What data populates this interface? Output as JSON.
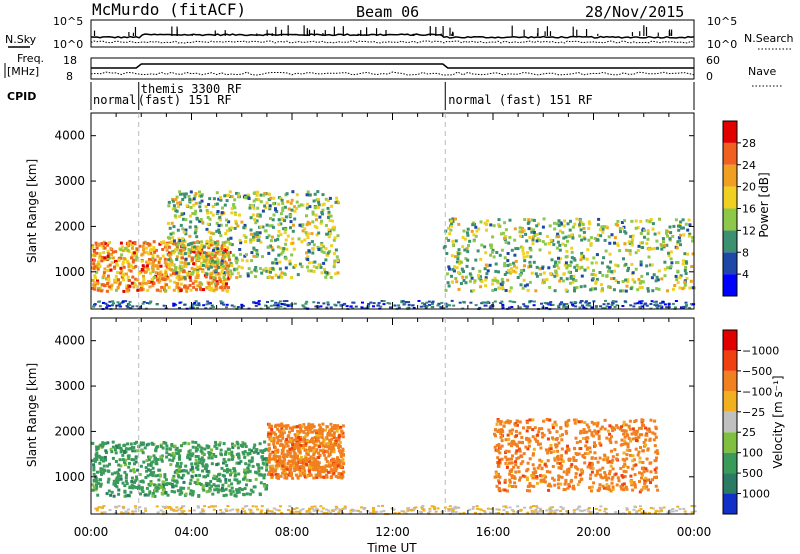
{
  "header": {
    "station": "McMurdo (fitACF)",
    "beam": "Beam 06",
    "date": "28/Nov/2015"
  },
  "top_panels": {
    "sky_label": "N.Sky",
    "search_label": "N.Search",
    "sky_ticks": [
      "10^5",
      "10^0"
    ],
    "search_ticks": [
      "10^5",
      "10^0"
    ],
    "freq_label_1": "Freq.",
    "freq_label_2": "[MHz]",
    "freq_ticks": [
      "18",
      "8"
    ],
    "nave_label": "Nave",
    "nave_ticks": [
      "60",
      "0"
    ],
    "cpid_label": "CPID",
    "cpid_segments": [
      {
        "label": "normal",
        "start_hour": 0.0
      },
      {
        "label": "themis 3300 RF",
        "start_hour": 1.9
      },
      {
        "label": "(fast) 151 RF",
        "start_hour": 1.9
      },
      {
        "label": "normal (fast) 151 RF",
        "start_hour": 14.1
      }
    ]
  },
  "chart_data": [
    {
      "type": "heatmap",
      "name": "power",
      "ylabel": "Slant Range [km]",
      "ylim": [
        180,
        4500
      ],
      "yticks": [
        1000,
        2000,
        3000,
        4000
      ],
      "xlim": [
        0,
        24
      ],
      "colorbar": {
        "label": "Power [dB]",
        "tick_labels": [
          "4",
          "8",
          "12",
          "16",
          "20",
          "24",
          "28"
        ],
        "colors": [
          "#0000ff",
          "#1e48a8",
          "#3a9070",
          "#8cc84a",
          "#f0d020",
          "#f0a020",
          "#f06020",
          "#e00000"
        ]
      },
      "features": [
        {
          "start_hour": 0.0,
          "end_hour": 5.5,
          "range_km": [
            600,
            1700
          ],
          "level_db": 22
        },
        {
          "start_hour": 3.0,
          "end_hour": 9.8,
          "range_km": [
            900,
            2800
          ],
          "level_db": 14
        },
        {
          "start_hour": 14.0,
          "end_hour": 24.0,
          "range_km": [
            600,
            2200
          ],
          "level_db": 14
        }
      ]
    },
    {
      "type": "heatmap",
      "name": "velocity",
      "xlabel": "Time UT",
      "ylabel": "Slant Range [km]",
      "ylim": [
        180,
        4500
      ],
      "yticks": [
        1000,
        2000,
        3000,
        4000
      ],
      "xlim": [
        0,
        24
      ],
      "xtick_labels": [
        "00:00",
        "04:00",
        "08:00",
        "12:00",
        "16:00",
        "20:00",
        "00:00"
      ],
      "colorbar": {
        "label": "Velocity [m s⁻¹]",
        "tick_labels": [
          "1000",
          "500",
          "100",
          "25",
          "−25",
          "−100",
          "−500",
          "−1000"
        ],
        "colors": [
          "#1030c8",
          "#2a7a64",
          "#3a9a5a",
          "#80c040",
          "#c0c0c0",
          "#f0b020",
          "#f08020",
          "#f04010",
          "#e00000"
        ]
      },
      "features": [
        {
          "start_hour": 0.0,
          "end_hour": 7.0,
          "range_km": [
            600,
            1800
          ],
          "velocity_ms": 300
        },
        {
          "start_hour": 7.0,
          "end_hour": 10.0,
          "range_km": [
            1000,
            2200
          ],
          "velocity_ms": -300
        },
        {
          "start_hour": 16.0,
          "end_hour": 22.5,
          "range_km": [
            700,
            2300
          ],
          "velocity_ms": -300
        }
      ]
    }
  ]
}
